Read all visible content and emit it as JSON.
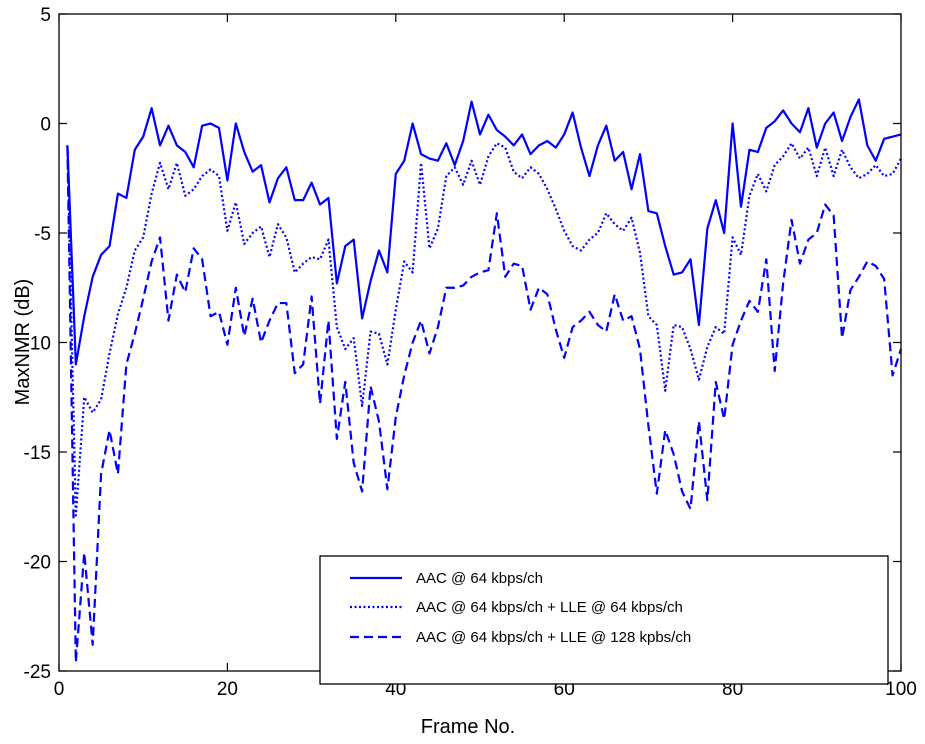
{
  "chart_data": {
    "type": "line",
    "xlabel": "Frame No.",
    "ylabel": "MaxNMR (dB)",
    "xlim": [
      0,
      100
    ],
    "ylim": [
      -25,
      5
    ],
    "xticks": [
      0,
      20,
      40,
      60,
      80,
      100
    ],
    "yticks": [
      -25,
      -20,
      -15,
      -10,
      -5,
      0,
      5
    ],
    "xtick_labels": [
      "0",
      "20",
      "40",
      "60",
      "80",
      "100"
    ],
    "ytick_labels": [
      "-25",
      "-20",
      "-15",
      "-10",
      "-5",
      "0",
      "5"
    ],
    "grid": false,
    "legend_position": "bottom-right",
    "line_color": "#0000ff",
    "x": [
      1,
      2,
      3,
      4,
      5,
      6,
      7,
      8,
      9,
      10,
      11,
      12,
      13,
      14,
      15,
      16,
      17,
      18,
      19,
      20,
      21,
      22,
      23,
      24,
      25,
      26,
      27,
      28,
      29,
      30,
      31,
      32,
      33,
      34,
      35,
      36,
      37,
      38,
      39,
      40,
      41,
      42,
      43,
      44,
      45,
      46,
      47,
      48,
      49,
      50,
      51,
      52,
      53,
      54,
      55,
      56,
      57,
      58,
      59,
      60,
      61,
      62,
      63,
      64,
      65,
      66,
      67,
      68,
      69,
      70,
      71,
      72,
      73,
      74,
      75,
      76,
      77,
      78,
      79,
      80,
      81,
      82,
      83,
      84,
      85,
      86,
      87,
      88,
      89,
      90,
      91,
      92,
      93,
      94,
      95,
      96,
      97,
      98,
      99,
      100
    ],
    "series": [
      {
        "name": "AAC @ 64 kbps/ch",
        "style": "solid",
        "values": [
          -1,
          -11,
          -8.8,
          -7,
          -6,
          -5.6,
          -3.2,
          -3.4,
          -1.2,
          -0.6,
          0.7,
          -1.0,
          -0.1,
          -1.0,
          -1.3,
          -2.0,
          -0.1,
          0.0,
          -0.2,
          -2.6,
          0.0,
          -1.3,
          -2.2,
          -1.9,
          -3.6,
          -2.5,
          -2.0,
          -3.5,
          -3.5,
          -2.7,
          -3.7,
          -3.4,
          -7.3,
          -5.6,
          -5.3,
          -8.9,
          -7.2,
          -5.8,
          -6.8,
          -2.3,
          -1.7,
          0.0,
          -1.4,
          -1.6,
          -1.7,
          -0.9,
          -1.9,
          -0.8,
          1.0,
          -0.5,
          0.4,
          -0.3,
          -0.6,
          -1.0,
          -0.5,
          -1.4,
          -1.0,
          -0.8,
          -1.1,
          -0.5,
          0.5,
          -1.1,
          -2.4,
          -1.0,
          -0.1,
          -1.7,
          -1.3,
          -3.0,
          -1.4,
          -4.0,
          -4.1,
          -5.6,
          -6.9,
          -6.8,
          -6.2,
          -9.2,
          -4.8,
          -3.5,
          -5.0,
          0.0,
          -3.8,
          -1.2,
          -1.3,
          -0.2,
          0.1,
          0.6,
          0.0,
          -0.4,
          0.7,
          -1.1,
          0.0,
          0.5,
          -0.8,
          0.3,
          1.1,
          -1.0,
          -1.7,
          -0.7,
          -0.6,
          -0.5
        ]
      },
      {
        "name": "AAC @ 64 kbps/ch + LLE @ 64 kbps/ch",
        "style": "dotted",
        "values": [
          -1,
          -17.9,
          -12.5,
          -13.2,
          -12.6,
          -10.5,
          -8.7,
          -7.5,
          -5.8,
          -5.2,
          -3.2,
          -1.8,
          -3.0,
          -1.8,
          -3.3,
          -3.0,
          -2.4,
          -2.1,
          -2.4,
          -4.9,
          -3.6,
          -5.5,
          -5.0,
          -4.7,
          -6.1,
          -4.6,
          -5.2,
          -6.8,
          -6.4,
          -6.1,
          -6.2,
          -5.3,
          -9.3,
          -10.3,
          -9.8,
          -12.9,
          -9.5,
          -9.6,
          -11.0,
          -8.5,
          -6.3,
          -6.8,
          -1.8,
          -5.7,
          -4.8,
          -2.4,
          -2.0,
          -2.8,
          -1.7,
          -2.8,
          -1.5,
          -0.9,
          -1.1,
          -2.2,
          -2.5,
          -2.0,
          -2.3,
          -3.0,
          -3.9,
          -4.9,
          -5.6,
          -5.8,
          -5.3,
          -5.0,
          -4.1,
          -4.6,
          -4.9,
          -4.3,
          -5.9,
          -8.8,
          -9.2,
          -12.2,
          -9.2,
          -9.3,
          -10.3,
          -11.7,
          -10.2,
          -9.3,
          -9.6,
          -5.2,
          -6.0,
          -3.3,
          -2.3,
          -3.1,
          -1.9,
          -1.5,
          -0.9,
          -1.6,
          -1.1,
          -2.4,
          -1.1,
          -2.4,
          -1.2,
          -2.0,
          -2.5,
          -2.3,
          -1.9,
          -2.4,
          -2.3,
          -1.6
        ]
      },
      {
        "name": "AAC @ 64 kbps/ch + LLE @ 128 kpbs/ch",
        "style": "dashed",
        "values": [
          -1,
          -24.6,
          -19.6,
          -23.8,
          -16.0,
          -14.0,
          -16.0,
          -11.0,
          -9.6,
          -8.0,
          -6.3,
          -5.2,
          -9.0,
          -6.9,
          -7.7,
          -5.7,
          -6.2,
          -8.8,
          -8.6,
          -10.1,
          -7.5,
          -9.7,
          -8.0,
          -10.0,
          -9.0,
          -8.2,
          -8.2,
          -11.4,
          -11.0,
          -7.9,
          -12.8,
          -9.0,
          -14.4,
          -11.8,
          -15.5,
          -16.8,
          -12.0,
          -13.6,
          -16.7,
          -13.4,
          -11.5,
          -10.0,
          -9.0,
          -10.5,
          -9.3,
          -7.5,
          -7.5,
          -7.4,
          -7.0,
          -6.8,
          -6.7,
          -4.1,
          -7.0,
          -6.4,
          -6.5,
          -8.5,
          -7.5,
          -7.8,
          -9.4,
          -10.7,
          -9.3,
          -9.0,
          -8.6,
          -9.2,
          -9.5,
          -7.8,
          -9.0,
          -8.8,
          -10.3,
          -13.8,
          -16.9,
          -14.0,
          -15.1,
          -16.8,
          -17.6,
          -13.6,
          -17.2,
          -11.8,
          -13.5,
          -10.1,
          -9.0,
          -8.1,
          -8.6,
          -6.2,
          -11.3,
          -7.3,
          -4.4,
          -6.4,
          -5.3,
          -5.0,
          -3.7,
          -4.2,
          -9.8,
          -7.6,
          -7.0,
          -6.3,
          -6.5,
          -7.1,
          -11.5,
          -10.3
        ]
      }
    ]
  }
}
